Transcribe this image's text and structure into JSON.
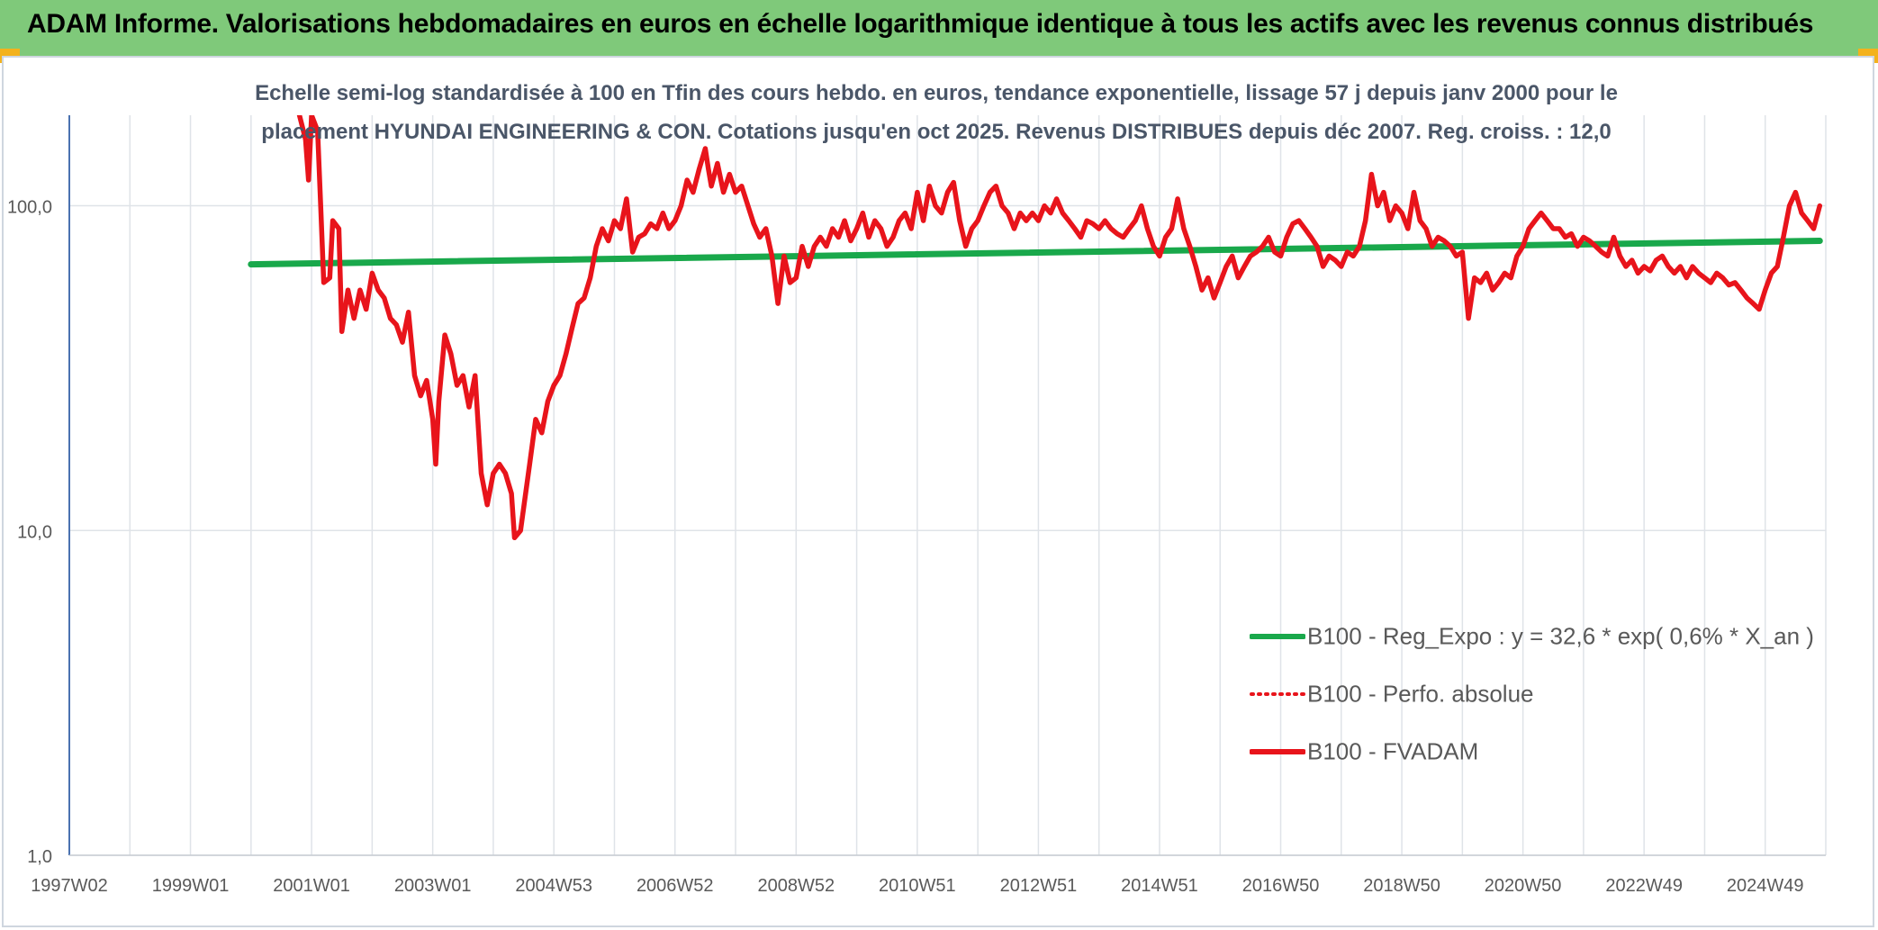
{
  "header": {
    "title": "ADAM Informe. Valorisations hebdomadaires en euros en échelle logarithmique identique à tous les actifs avec les revenus connus distribués"
  },
  "chart_data": {
    "type": "line",
    "title_line1": "Echelle semi-log standardisée à 100 en Tfin des cours hebdo. en euros, tendance exponentielle, lissage 57 j depuis janv 2000 pour le",
    "title_line2": "placement HYUNDAI ENGINEERING & CON. Cotations jusqu'en oct 2025. Revenus DISTRIBUES depuis déc 2007. Reg. croiss. : 12,0",
    "y_scale": "log",
    "ylim": [
      1,
      190
    ],
    "xlim": [
      1997.0,
      2026.0
    ],
    "grid": true,
    "legend_position": "bottom-right",
    "y_ticks": [
      {
        "value": 1,
        "label": "1,0"
      },
      {
        "value": 10,
        "label": "10,0"
      },
      {
        "value": 100,
        "label": "100,0"
      }
    ],
    "x_ticks": [
      {
        "value": 1997.0,
        "label": "1997W02"
      },
      {
        "value": 1999.0,
        "label": "1999W01"
      },
      {
        "value": 2001.0,
        "label": "2001W01"
      },
      {
        "value": 2003.0,
        "label": "2003W01"
      },
      {
        "value": 2005.0,
        "label": "2004W53"
      },
      {
        "value": 2007.0,
        "label": "2006W52"
      },
      {
        "value": 2009.0,
        "label": "2008W52"
      },
      {
        "value": 2011.0,
        "label": "2010W51"
      },
      {
        "value": 2013.0,
        "label": "2012W51"
      },
      {
        "value": 2015.0,
        "label": "2014W51"
      },
      {
        "value": 2017.0,
        "label": "2016W50"
      },
      {
        "value": 2019.0,
        "label": "2018W50"
      },
      {
        "value": 2021.0,
        "label": "2020W50"
      },
      {
        "value": 2023.0,
        "label": "2022W49"
      },
      {
        "value": 2025.0,
        "label": "2024W49"
      }
    ],
    "series": [
      {
        "name": "B100 - Reg_Expo : y = 32,6 * exp( 0,6% *  X_an )",
        "color": "#19a84b",
        "style": "solid",
        "points": [
          [
            2000.0,
            66
          ],
          [
            2025.9,
            78
          ]
        ]
      },
      {
        "name": "B100 - Perfo. absolue",
        "color": "#e8141b",
        "style": "dotted",
        "points": []
      },
      {
        "name": "B100 - FVADAM",
        "color": "#e8141b",
        "style": "solid",
        "points": [
          [
            2000.8,
            190
          ],
          [
            2000.9,
            160
          ],
          [
            2000.95,
            120
          ],
          [
            2001.0,
            190
          ],
          [
            2001.1,
            170
          ],
          [
            2001.15,
            100
          ],
          [
            2001.2,
            58
          ],
          [
            2001.3,
            60
          ],
          [
            2001.35,
            90
          ],
          [
            2001.45,
            85
          ],
          [
            2001.5,
            41
          ],
          [
            2001.6,
            55
          ],
          [
            2001.7,
            45
          ],
          [
            2001.8,
            55
          ],
          [
            2001.9,
            48
          ],
          [
            2002.0,
            62
          ],
          [
            2002.1,
            55
          ],
          [
            2002.2,
            52
          ],
          [
            2002.3,
            45
          ],
          [
            2002.4,
            43
          ],
          [
            2002.5,
            38
          ],
          [
            2002.6,
            47
          ],
          [
            2002.7,
            30
          ],
          [
            2002.8,
            26
          ],
          [
            2002.9,
            29
          ],
          [
            2003.0,
            22
          ],
          [
            2003.05,
            16
          ],
          [
            2003.1,
            25
          ],
          [
            2003.2,
            40
          ],
          [
            2003.3,
            35
          ],
          [
            2003.4,
            28
          ],
          [
            2003.5,
            30
          ],
          [
            2003.6,
            24
          ],
          [
            2003.7,
            30
          ],
          [
            2003.8,
            15
          ],
          [
            2003.9,
            12
          ],
          [
            2004.0,
            15
          ],
          [
            2004.1,
            16
          ],
          [
            2004.2,
            15
          ],
          [
            2004.3,
            13
          ],
          [
            2004.35,
            9.5
          ],
          [
            2004.45,
            10
          ],
          [
            2004.6,
            16
          ],
          [
            2004.7,
            22
          ],
          [
            2004.8,
            20
          ],
          [
            2004.9,
            25
          ],
          [
            2005.0,
            28
          ],
          [
            2005.1,
            30
          ],
          [
            2005.2,
            35
          ],
          [
            2005.3,
            42
          ],
          [
            2005.4,
            50
          ],
          [
            2005.5,
            52
          ],
          [
            2005.6,
            60
          ],
          [
            2005.7,
            75
          ],
          [
            2005.8,
            85
          ],
          [
            2005.9,
            78
          ],
          [
            2006.0,
            90
          ],
          [
            2006.1,
            85
          ],
          [
            2006.2,
            105
          ],
          [
            2006.3,
            72
          ],
          [
            2006.4,
            80
          ],
          [
            2006.5,
            82
          ],
          [
            2006.6,
            88
          ],
          [
            2006.7,
            85
          ],
          [
            2006.8,
            95
          ],
          [
            2006.9,
            85
          ],
          [
            2007.0,
            90
          ],
          [
            2007.1,
            100
          ],
          [
            2007.2,
            120
          ],
          [
            2007.3,
            110
          ],
          [
            2007.4,
            130
          ],
          [
            2007.5,
            150
          ],
          [
            2007.55,
            130
          ],
          [
            2007.6,
            115
          ],
          [
            2007.7,
            135
          ],
          [
            2007.8,
            110
          ],
          [
            2007.9,
            125
          ],
          [
            2008.0,
            110
          ],
          [
            2008.1,
            115
          ],
          [
            2008.3,
            88
          ],
          [
            2008.4,
            80
          ],
          [
            2008.5,
            85
          ],
          [
            2008.6,
            70
          ],
          [
            2008.7,
            50
          ],
          [
            2008.8,
            70
          ],
          [
            2008.9,
            58
          ],
          [
            2009.0,
            60
          ],
          [
            2009.1,
            75
          ],
          [
            2009.2,
            65
          ],
          [
            2009.3,
            75
          ],
          [
            2009.4,
            80
          ],
          [
            2009.5,
            75
          ],
          [
            2009.6,
            85
          ],
          [
            2009.7,
            80
          ],
          [
            2009.8,
            90
          ],
          [
            2009.9,
            78
          ],
          [
            2010.0,
            85
          ],
          [
            2010.1,
            95
          ],
          [
            2010.2,
            80
          ],
          [
            2010.3,
            90
          ],
          [
            2010.4,
            85
          ],
          [
            2010.5,
            75
          ],
          [
            2010.6,
            80
          ],
          [
            2010.7,
            90
          ],
          [
            2010.8,
            95
          ],
          [
            2010.9,
            85
          ],
          [
            2011.0,
            110
          ],
          [
            2011.1,
            90
          ],
          [
            2011.2,
            115
          ],
          [
            2011.3,
            100
          ],
          [
            2011.4,
            95
          ],
          [
            2011.5,
            110
          ],
          [
            2011.6,
            118
          ],
          [
            2011.7,
            90
          ],
          [
            2011.8,
            75
          ],
          [
            2011.9,
            85
          ],
          [
            2012.0,
            90
          ],
          [
            2012.1,
            100
          ],
          [
            2012.2,
            110
          ],
          [
            2012.3,
            115
          ],
          [
            2012.4,
            100
          ],
          [
            2012.5,
            95
          ],
          [
            2012.6,
            85
          ],
          [
            2012.7,
            95
          ],
          [
            2012.8,
            90
          ],
          [
            2012.9,
            95
          ],
          [
            2013.0,
            90
          ],
          [
            2013.1,
            100
          ],
          [
            2013.2,
            95
          ],
          [
            2013.3,
            105
          ],
          [
            2013.4,
            95
          ],
          [
            2013.5,
            90
          ],
          [
            2013.6,
            85
          ],
          [
            2013.7,
            80
          ],
          [
            2013.8,
            90
          ],
          [
            2013.9,
            88
          ],
          [
            2014.0,
            85
          ],
          [
            2014.1,
            90
          ],
          [
            2014.2,
            85
          ],
          [
            2014.3,
            82
          ],
          [
            2014.4,
            80
          ],
          [
            2014.5,
            85
          ],
          [
            2014.6,
            90
          ],
          [
            2014.7,
            100
          ],
          [
            2014.8,
            85
          ],
          [
            2014.9,
            75
          ],
          [
            2015.0,
            70
          ],
          [
            2015.1,
            80
          ],
          [
            2015.2,
            85
          ],
          [
            2015.3,
            105
          ],
          [
            2015.4,
            85
          ],
          [
            2015.5,
            75
          ],
          [
            2015.6,
            65
          ],
          [
            2015.7,
            55
          ],
          [
            2015.8,
            60
          ],
          [
            2015.9,
            52
          ],
          [
            2016.0,
            58
          ],
          [
            2016.1,
            65
          ],
          [
            2016.2,
            70
          ],
          [
            2016.3,
            60
          ],
          [
            2016.4,
            65
          ],
          [
            2016.5,
            70
          ],
          [
            2016.6,
            72
          ],
          [
            2016.7,
            75
          ],
          [
            2016.8,
            80
          ],
          [
            2016.9,
            72
          ],
          [
            2017.0,
            70
          ],
          [
            2017.1,
            80
          ],
          [
            2017.2,
            88
          ],
          [
            2017.3,
            90
          ],
          [
            2017.4,
            85
          ],
          [
            2017.5,
            80
          ],
          [
            2017.6,
            75
          ],
          [
            2017.7,
            65
          ],
          [
            2017.8,
            70
          ],
          [
            2017.9,
            68
          ],
          [
            2018.0,
            65
          ],
          [
            2018.1,
            72
          ],
          [
            2018.2,
            70
          ],
          [
            2018.3,
            75
          ],
          [
            2018.4,
            90
          ],
          [
            2018.5,
            125
          ],
          [
            2018.6,
            100
          ],
          [
            2018.7,
            110
          ],
          [
            2018.8,
            90
          ],
          [
            2018.9,
            100
          ],
          [
            2019.0,
            95
          ],
          [
            2019.1,
            85
          ],
          [
            2019.2,
            110
          ],
          [
            2019.3,
            90
          ],
          [
            2019.4,
            85
          ],
          [
            2019.5,
            75
          ],
          [
            2019.6,
            80
          ],
          [
            2019.7,
            78
          ],
          [
            2019.8,
            75
          ],
          [
            2019.9,
            70
          ],
          [
            2020.0,
            72
          ],
          [
            2020.1,
            45
          ],
          [
            2020.2,
            60
          ],
          [
            2020.3,
            58
          ],
          [
            2020.4,
            62
          ],
          [
            2020.5,
            55
          ],
          [
            2020.6,
            58
          ],
          [
            2020.7,
            62
          ],
          [
            2020.8,
            60
          ],
          [
            2020.9,
            70
          ],
          [
            2021.0,
            75
          ],
          [
            2021.1,
            85
          ],
          [
            2021.2,
            90
          ],
          [
            2021.3,
            95
          ],
          [
            2021.4,
            90
          ],
          [
            2021.5,
            85
          ],
          [
            2021.6,
            85
          ],
          [
            2021.7,
            80
          ],
          [
            2021.8,
            82
          ],
          [
            2021.9,
            75
          ],
          [
            2022.0,
            80
          ],
          [
            2022.1,
            78
          ],
          [
            2022.2,
            75
          ],
          [
            2022.3,
            72
          ],
          [
            2022.4,
            70
          ],
          [
            2022.5,
            80
          ],
          [
            2022.6,
            70
          ],
          [
            2022.7,
            65
          ],
          [
            2022.8,
            68
          ],
          [
            2022.9,
            62
          ],
          [
            2023.0,
            65
          ],
          [
            2023.1,
            63
          ],
          [
            2023.2,
            68
          ],
          [
            2023.3,
            70
          ],
          [
            2023.4,
            65
          ],
          [
            2023.5,
            62
          ],
          [
            2023.6,
            65
          ],
          [
            2023.7,
            60
          ],
          [
            2023.8,
            65
          ],
          [
            2023.9,
            62
          ],
          [
            2024.0,
            60
          ],
          [
            2024.1,
            58
          ],
          [
            2024.2,
            62
          ],
          [
            2024.3,
            60
          ],
          [
            2024.4,
            57
          ],
          [
            2024.5,
            58
          ],
          [
            2024.6,
            55
          ],
          [
            2024.7,
            52
          ],
          [
            2024.8,
            50
          ],
          [
            2024.9,
            48
          ],
          [
            2025.0,
            55
          ],
          [
            2025.1,
            62
          ],
          [
            2025.2,
            65
          ],
          [
            2025.3,
            80
          ],
          [
            2025.4,
            100
          ],
          [
            2025.5,
            110
          ],
          [
            2025.6,
            95
          ],
          [
            2025.7,
            90
          ],
          [
            2025.8,
            85
          ],
          [
            2025.9,
            100
          ]
        ]
      }
    ]
  }
}
